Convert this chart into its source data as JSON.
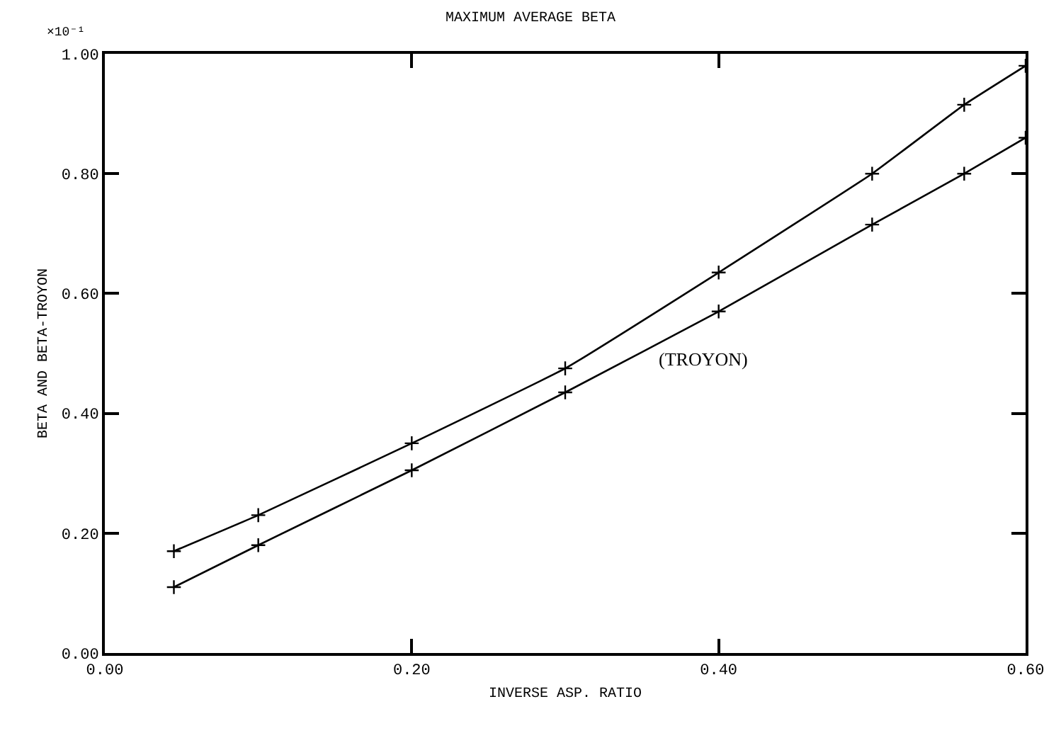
{
  "chart_data": {
    "type": "line",
    "title": "MAXIMUM AVERAGE BETA",
    "xlabel": "INVERSE ASP. RATIO",
    "ylabel": "BETA AND BETA-TROYON",
    "annotations": [
      "×10⁻¹",
      "(TROYON)"
    ],
    "series": [
      {
        "color": "#000000",
        "x": [
          0.045,
          0.1,
          0.2,
          0.3,
          0.4,
          0.5,
          0.56,
          0.6
        ],
        "values": [
          0.17,
          0.23,
          0.35,
          0.475,
          0.635,
          0.8,
          0.915,
          0.98
        ]
      },
      {
        "color": "#000000",
        "x": [
          0.045,
          0.1,
          0.2,
          0.3,
          0.4,
          0.5,
          0.56,
          0.6
        ],
        "values": [
          0.11,
          0.18,
          0.305,
          0.435,
          0.57,
          0.715,
          0.8,
          0.86
        ]
      }
    ],
    "xlim": [
      0,
      0.6
    ],
    "xticks": [
      {
        "value": 0,
        "label": "0.00"
      },
      {
        "value": 0.2,
        "label": "0.20"
      },
      {
        "value": 0.4,
        "label": "0.40"
      },
      {
        "value": 0.6,
        "label": "0.60"
      }
    ],
    "ylim": [
      0,
      1
    ],
    "yticks": [
      {
        "value": 0,
        "label": "0.00"
      },
      {
        "value": 0.2,
        "label": "0.20"
      },
      {
        "value": 0.4,
        "label": "0.40"
      },
      {
        "value": 0.6,
        "label": "0.60"
      },
      {
        "value": 0.8,
        "label": "0.80"
      },
      {
        "value": 1,
        "label": "1.00"
      }
    ],
    "grid": false,
    "marker": "cross",
    "line_style": "solid"
  }
}
